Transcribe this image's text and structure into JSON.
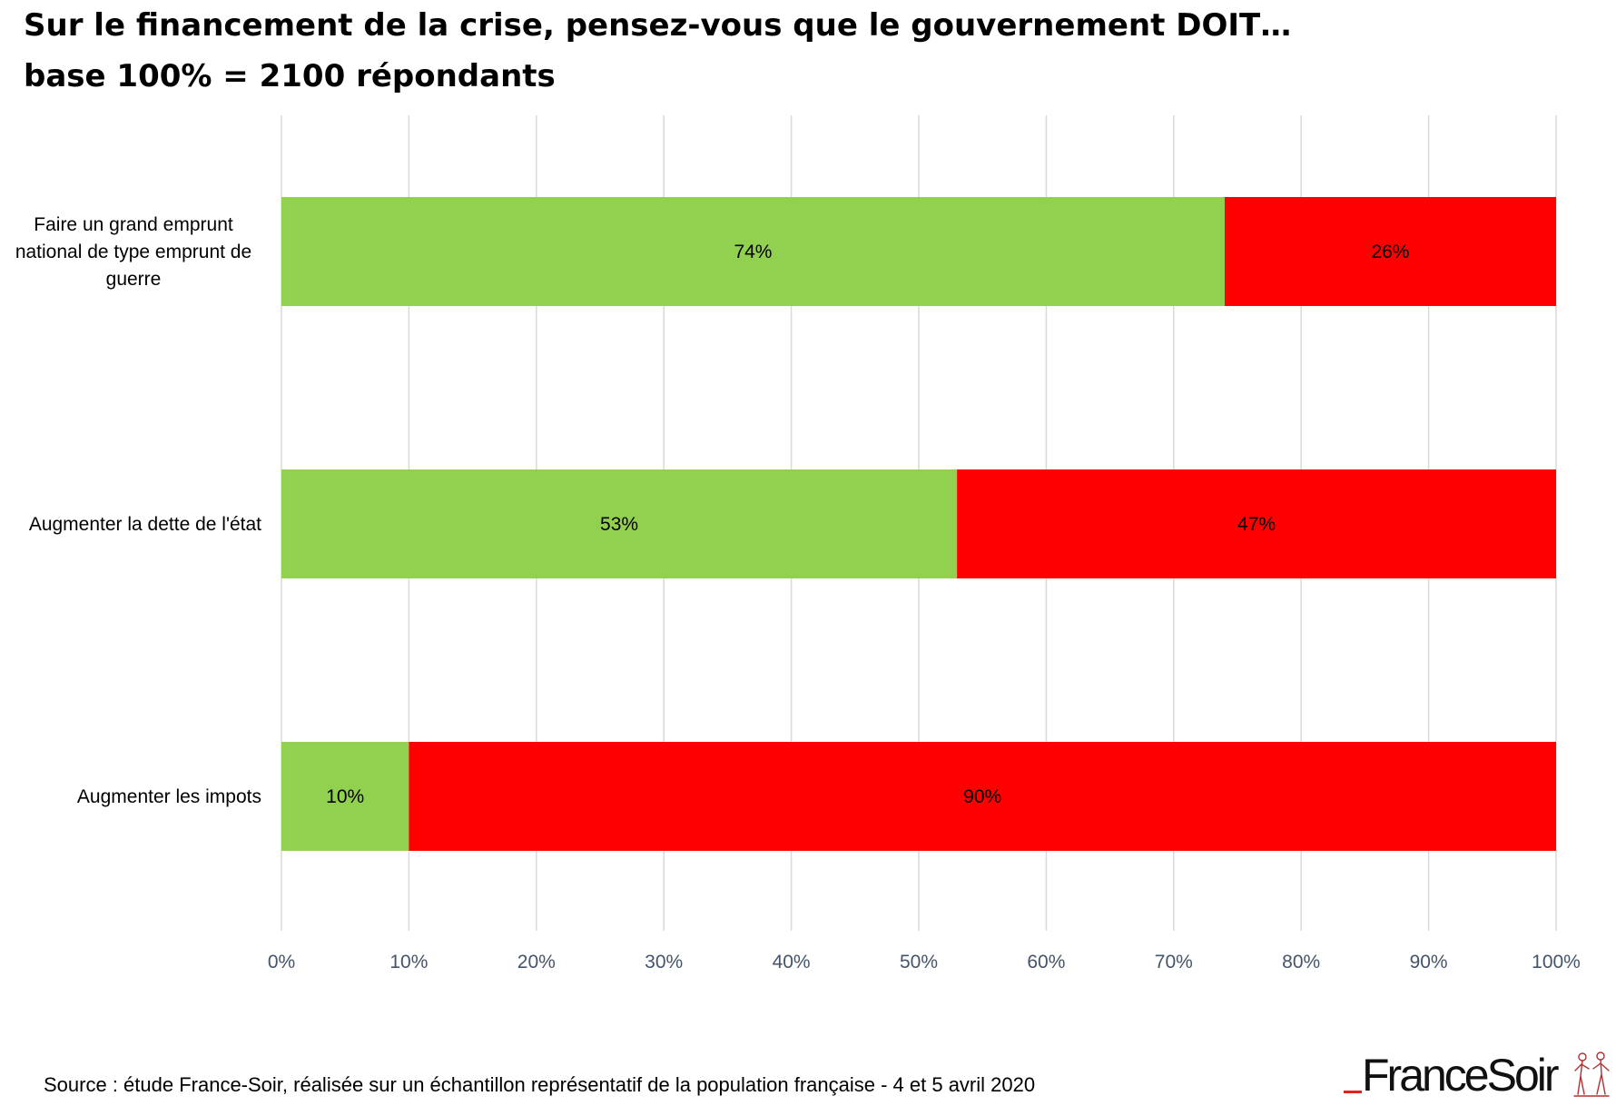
{
  "chart_data": {
    "type": "bar",
    "orientation": "horizontal",
    "stacked": "percent",
    "title": "Sur le financement de la crise, pensez-vous que le gouvernement DOIT…",
    "subtitle": "base 100% = 2100 répondants",
    "categories": [
      "Faire un grand emprunt national de type emprunt de guerre",
      "Augmenter la dette de l'état",
      "Augmenter les impots"
    ],
    "category_lines": [
      [
        "Faire un grand emprunt",
        "national de type emprunt de",
        "guerre"
      ],
      [
        "Augmenter la dette de l'état"
      ],
      [
        "Augmenter les impots"
      ]
    ],
    "series": [
      {
        "values": [
          74,
          53,
          10
        ],
        "data_labels": [
          "74%",
          "53%",
          "10%"
        ],
        "color": "#92d050"
      },
      {
        "values": [
          26,
          47,
          90
        ],
        "data_labels": [
          "26%",
          "47%",
          "90%"
        ],
        "color": "#ff0000"
      }
    ],
    "xlim": [
      0,
      100
    ],
    "x_ticks": [
      0,
      10,
      20,
      30,
      40,
      50,
      60,
      70,
      80,
      90,
      100
    ],
    "x_tick_labels": [
      "0%",
      "10%",
      "20%",
      "30%",
      "40%",
      "50%",
      "60%",
      "70%",
      "80%",
      "90%",
      "100%"
    ],
    "xlabel": "",
    "ylabel": "",
    "grid": "vertical",
    "legend": "none",
    "colors": {
      "gridline": "#d9d9d9",
      "tick_label": "#44546a",
      "category_label": "#000000",
      "data_label": "#000000"
    }
  },
  "footer": {
    "source": "Source : étude France-Soir, réalisée sur un échantillon représentatif de la population française - 4 et 5 avril 2020"
  },
  "logo": {
    "text": "FranceSoir",
    "accent_color": "#e2231a"
  }
}
